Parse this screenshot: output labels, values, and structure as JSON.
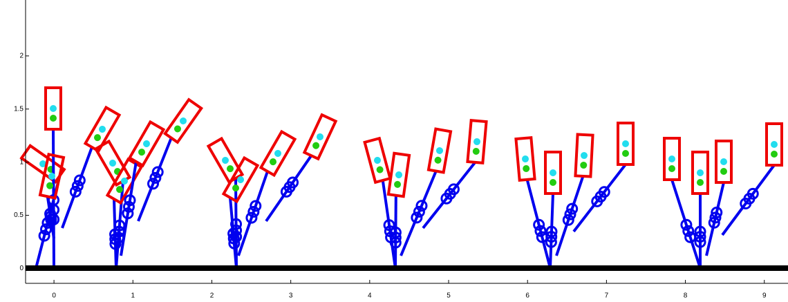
{
  "chart_data": {
    "type": "line",
    "xlim": [
      -0.36,
      9.3
    ],
    "xticks": [
      0,
      1,
      2,
      3,
      4,
      5,
      6,
      7,
      8,
      9
    ],
    "ylim": [
      -0.14,
      2.5
    ],
    "yticks": [
      0,
      0.5,
      1,
      1.5,
      2
    ]
  }
}
